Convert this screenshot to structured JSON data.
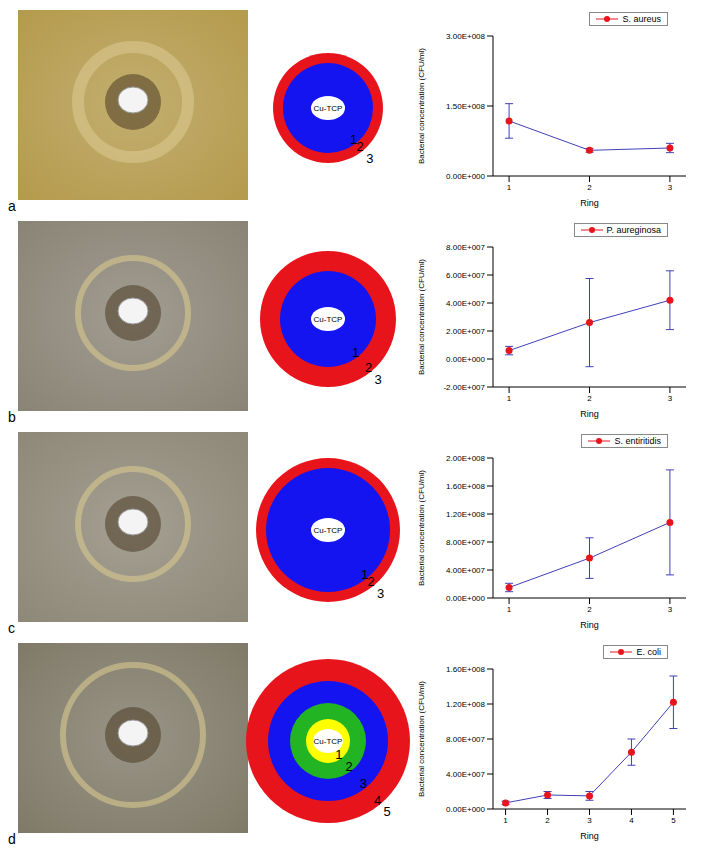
{
  "panels": [
    {
      "label": "a",
      "center": "Cu-TCP",
      "rings": [
        "1",
        "2",
        "3"
      ]
    },
    {
      "label": "b",
      "center": "Cu-TCP",
      "rings": [
        "1",
        "2",
        "3"
      ]
    },
    {
      "label": "c",
      "center": "Cu-TCP",
      "rings": [
        "1",
        "2",
        "3"
      ]
    },
    {
      "label": "d",
      "center": "Cu-TCP",
      "rings": [
        "1",
        "2",
        "3",
        "4",
        "5"
      ]
    }
  ],
  "chart_data": [
    {
      "type": "line",
      "x_label": "Ring",
      "y_label": "Bacterial concentration (CFU/ml)",
      "x": [
        1,
        2,
        3
      ],
      "xlim": [
        0.8,
        3.2
      ],
      "xticks": [
        1,
        2,
        3
      ],
      "ylim": [
        0,
        300000000
      ],
      "yticks": [
        {
          "value": 0,
          "label": "0.00E+000"
        },
        {
          "value": 150000000,
          "label": "1.50E+008"
        },
        {
          "value": 300000000,
          "label": "3.00E+008"
        }
      ],
      "legend": "top",
      "series": [
        {
          "name": "S. aureus",
          "color": "#e8141c",
          "marker": "circle",
          "values": [
            118000000,
            55000000,
            60000000
          ],
          "errors": [
            37000000,
            4000000,
            10000000
          ]
        }
      ]
    },
    {
      "type": "line",
      "x_label": "Ring",
      "y_label": "Bacterial concentration (CFU/ml)",
      "x": [
        1,
        2,
        3
      ],
      "xlim": [
        0.8,
        3.2
      ],
      "xticks": [
        1,
        2,
        3
      ],
      "ylim": [
        -20000000,
        80000000
      ],
      "yticks": [
        {
          "value": -20000000,
          "label": "-2.00E+007"
        },
        {
          "value": 0,
          "label": "0.00E+000"
        },
        {
          "value": 20000000,
          "label": "2.00E+007"
        },
        {
          "value": 40000000,
          "label": "4.00E+007"
        },
        {
          "value": 60000000,
          "label": "6.00E+007"
        },
        {
          "value": 80000000,
          "label": "8.00E+007"
        }
      ],
      "legend": "top",
      "series": [
        {
          "name": "P. aureginosa",
          "color": "#e8141c",
          "marker": "circle",
          "values": [
            6000000,
            26000000,
            42000000
          ],
          "errors": [
            3000000,
            31500000,
            21000000
          ]
        }
      ]
    },
    {
      "type": "line",
      "x_label": "Ring",
      "y_label": "Bacterial concentration (CFU/ml)",
      "x": [
        1,
        2,
        3
      ],
      "xlim": [
        0.8,
        3.2
      ],
      "xticks": [
        1,
        2,
        3
      ],
      "ylim": [
        0,
        200000000
      ],
      "yticks": [
        {
          "value": 0,
          "label": "0.00E+000"
        },
        {
          "value": 40000000,
          "label": "4.00E+007"
        },
        {
          "value": 80000000,
          "label": "8.00E+007"
        },
        {
          "value": 120000000,
          "label": "1.20E+008"
        },
        {
          "value": 160000000,
          "label": "1.60E+008"
        },
        {
          "value": 200000000,
          "label": "2.00E+008"
        }
      ],
      "legend": "top",
      "series": [
        {
          "name": "S. entiritidis",
          "color": "#e8141c",
          "marker": "circle",
          "values": [
            15000000,
            57000000,
            108000000
          ],
          "errors": [
            6000000,
            29000000,
            75000000
          ]
        }
      ]
    },
    {
      "type": "line",
      "x_label": "Ring",
      "y_label": "Bacterial concentration (CFU/ml)",
      "x": [
        1,
        2,
        3,
        4,
        5
      ],
      "xlim": [
        0.7,
        5.3
      ],
      "xticks": [
        1,
        2,
        3,
        4,
        5
      ],
      "ylim": [
        0,
        160000000
      ],
      "yticks": [
        {
          "value": 0,
          "label": "0.00E+000"
        },
        {
          "value": 40000000,
          "label": "4.00E+007"
        },
        {
          "value": 80000000,
          "label": "8.00E+007"
        },
        {
          "value": 120000000,
          "label": "1.20E+008"
        },
        {
          "value": 160000000,
          "label": "1.60E+008"
        }
      ],
      "legend": "top",
      "series": [
        {
          "name": "E. coli",
          "color": "#e8141c",
          "marker": "circle",
          "values": [
            7000000,
            16000000,
            15000000,
            65000000,
            122000000
          ],
          "errors": [
            2000000,
            4000000,
            5000000,
            15000000,
            30000000
          ]
        }
      ]
    }
  ]
}
